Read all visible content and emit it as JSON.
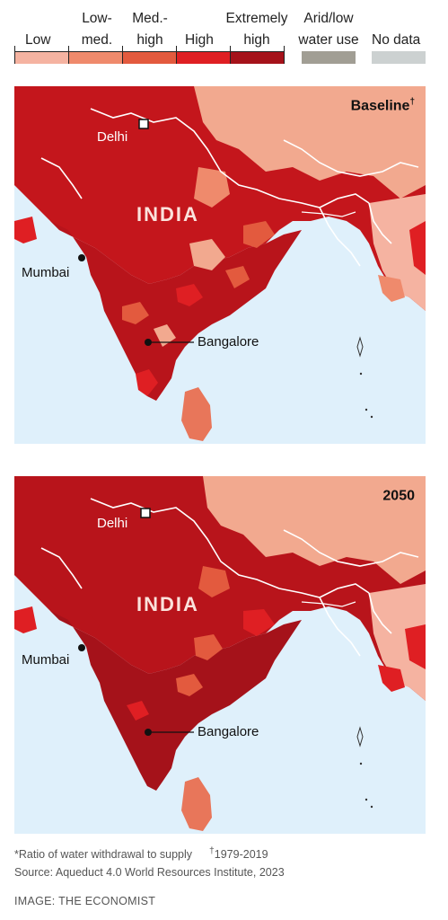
{
  "legend": {
    "categories": [
      {
        "label_top": "",
        "label_bottom": "Low",
        "color": "#f5b3a1"
      },
      {
        "label_top": "Low-",
        "label_bottom": "med.",
        "color": "#ef8a6c"
      },
      {
        "label_top": "Med.-",
        "label_bottom": "high",
        "color": "#e35a3e"
      },
      {
        "label_top": "",
        "label_bottom": "High",
        "color": "#df1f23"
      },
      {
        "label_top": "Extremely",
        "label_bottom": "high",
        "color": "#a5121a"
      },
      {
        "label_top": "Arid/low",
        "label_bottom": "water use",
        "color": "#a19e94"
      },
      {
        "label_top": "",
        "label_bottom": "No data",
        "color": "#ccd1d1"
      }
    ]
  },
  "maps": [
    {
      "title": "Baseline",
      "title_mark": "†",
      "country_label": "INDIA",
      "cities": {
        "delhi": "Delhi",
        "mumbai": "Mumbai",
        "bangalore": "Bangalore"
      }
    },
    {
      "title": "2050",
      "title_mark": "",
      "country_label": "INDIA",
      "cities": {
        "delhi": "Delhi",
        "mumbai": "Mumbai",
        "bangalore": "Bangalore"
      }
    }
  ],
  "colors": {
    "sea": "#dff0fb",
    "border": "#ffffff"
  },
  "footnote": {
    "ratio": "*Ratio of water withdrawal to supply",
    "period_mark": "†",
    "period": "1979-2019"
  },
  "source": "Source: Aqueduct 4.0 World Resources Institute, 2023",
  "credit": "IMAGE: THE ECONOMIST"
}
